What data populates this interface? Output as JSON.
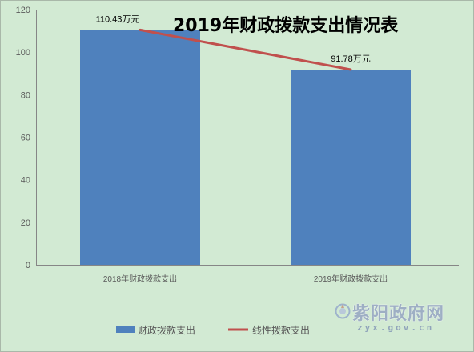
{
  "chart_data": {
    "type": "bar",
    "title": "2019年财政拨款支出情况表",
    "categories": [
      "2018年财政拨款支出",
      "2019年财政拨款支出"
    ],
    "series": [
      {
        "name": "财政拨款支出",
        "type": "bar",
        "values": [
          110.43,
          91.78
        ],
        "color": "#4f81bd"
      },
      {
        "name": "线性拨款支出",
        "type": "line",
        "values": [
          110.43,
          91.78
        ],
        "color": "#c0504d"
      }
    ],
    "data_labels": [
      "110.43万元",
      "91.78万元"
    ],
    "ylim": [
      0,
      120
    ],
    "yticks": [
      0,
      20,
      40,
      60,
      80,
      100,
      120
    ],
    "grid": false,
    "legend": "bottom"
  },
  "watermark": {
    "site_name": "紫阳政府网",
    "domain": "zyx.gov.cn",
    "logo_icon": "emblem-icon"
  },
  "background_color": "#d2ead3"
}
